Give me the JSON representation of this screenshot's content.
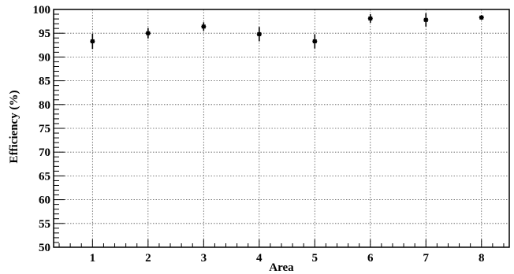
{
  "chart_data": {
    "type": "scatter",
    "xlabel": "Area",
    "ylabel": "Efficiency (%)",
    "xlim": [
      0.3,
      8.5
    ],
    "ylim": [
      50,
      100
    ],
    "x_ticks": [
      1,
      2,
      3,
      4,
      5,
      6,
      7,
      8
    ],
    "y_ticks": [
      50,
      55,
      60,
      65,
      70,
      75,
      80,
      85,
      90,
      95,
      100
    ],
    "grid": true,
    "series": [
      {
        "x": [
          1,
          2,
          3,
          4,
          5,
          6,
          7,
          8
        ],
        "y": [
          93.3,
          95.0,
          96.4,
          94.8,
          93.3,
          98.1,
          97.8,
          98.3
        ],
        "yerr": [
          1.6,
          1.1,
          0.9,
          1.5,
          1.5,
          0.9,
          1.4,
          0.5
        ]
      }
    ]
  }
}
